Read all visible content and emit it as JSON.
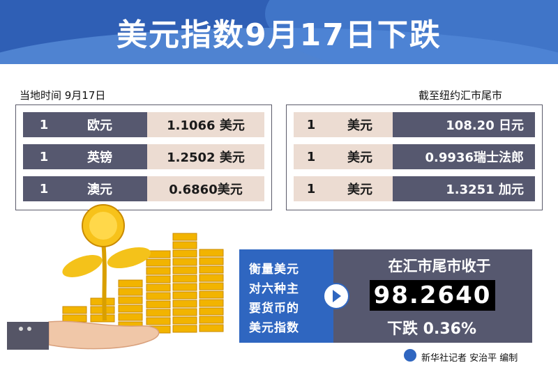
{
  "header": {
    "title": "美元指数9月17日下跌"
  },
  "left_panel": {
    "caption": "当地时间  9月17日",
    "rows": [
      {
        "amount": "1",
        "currency": "欧元",
        "rate": "1.1066 美元"
      },
      {
        "amount": "1",
        "currency": "英镑",
        "rate": "1.2502 美元"
      },
      {
        "amount": "1",
        "currency": "澳元",
        "rate": "0.6860美元"
      }
    ]
  },
  "right_panel": {
    "caption": "截至纽约汇市尾市",
    "rows": [
      {
        "amount": "1",
        "currency": "美元",
        "rate": "108.20 日元"
      },
      {
        "amount": "1",
        "currency": "美元",
        "rate": "0.9936瑞士法郎"
      },
      {
        "amount": "1",
        "currency": "美元",
        "rate": "1.3251 加元"
      }
    ]
  },
  "index_box": {
    "desc_lines": [
      "衡量美元",
      "对六种主",
      "要货币的",
      "美元指数"
    ],
    "close_label": "在汇市尾市收于",
    "value": "98.2640",
    "change": "下跌 0.36%"
  },
  "credit": "新华社记者 安治平 编制",
  "colors": {
    "header": "#2f5fb5",
    "row_dark": "#56586f",
    "row_light": "#ecdcd2",
    "accent_blue": "#2f66c0",
    "coin_gold": "#f2b400"
  },
  "icons": [
    "arrow-right-icon",
    "xinhua-logo-icon",
    "coin-tree-illustration",
    "hand-illustration"
  ]
}
